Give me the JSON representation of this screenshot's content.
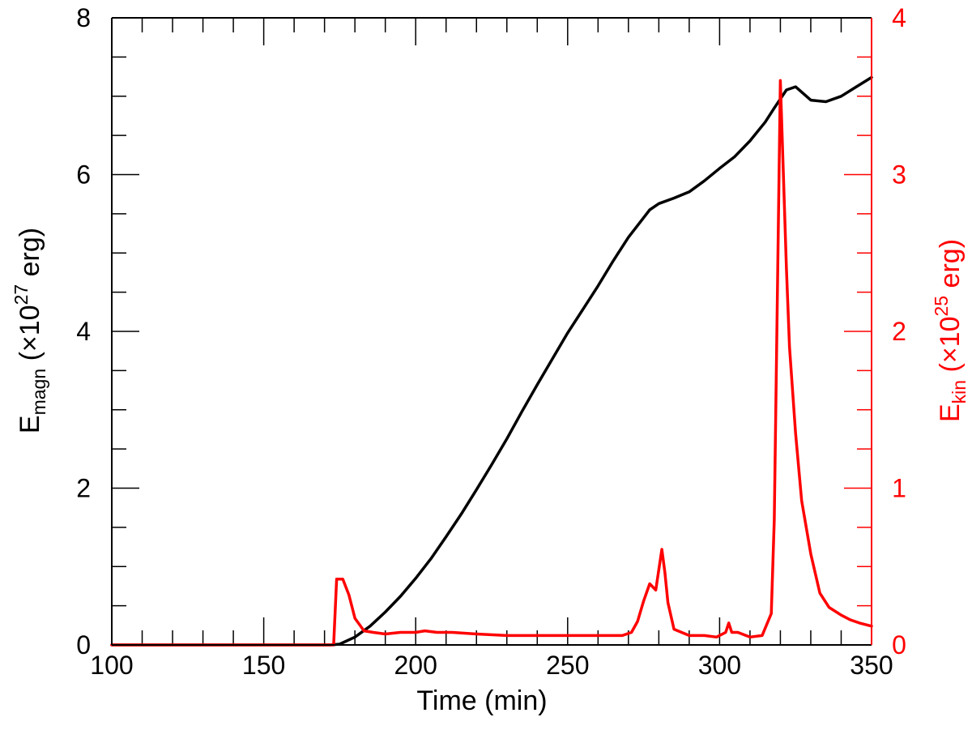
{
  "chart_data": {
    "type": "line",
    "title": "",
    "xlabel": "Time (min)",
    "ylabel_left": {
      "base": "E",
      "subscript": "magn",
      "unit_prefix": " (×10",
      "exponent": "27",
      "unit_suffix": " erg)"
    },
    "ylabel_right": {
      "base": "E",
      "subscript": "kin",
      "unit_prefix": " (×10",
      "exponent": "25",
      "unit_suffix": " erg)"
    },
    "xlim": [
      100,
      350
    ],
    "ylim_left": [
      0,
      8
    ],
    "ylim_right": [
      0,
      4
    ],
    "x_ticks": [
      100,
      150,
      200,
      250,
      300,
      350
    ],
    "y_ticks_left": [
      0,
      2,
      4,
      6,
      8
    ],
    "y_ticks_right": [
      0,
      1,
      2,
      3,
      4
    ],
    "x_minor_step": 10,
    "y_minor_step_left": 0.5,
    "y_minor_step_right": 0.25,
    "grid": false,
    "colors": {
      "left_axis": "#000000",
      "right_axis": "#ff0000"
    },
    "series": [
      {
        "axis": "left",
        "color": "#000000",
        "x": [
          100,
          150,
          172,
          175,
          180,
          185,
          190,
          195,
          200,
          205,
          210,
          215,
          220,
          225,
          230,
          235,
          240,
          245,
          250,
          255,
          260,
          265,
          270,
          275,
          277,
          280,
          285,
          290,
          295,
          300,
          305,
          310,
          315,
          318,
          322,
          325,
          330,
          335,
          340,
          345,
          350
        ],
        "y": [
          0,
          0,
          0,
          0.01,
          0.1,
          0.24,
          0.42,
          0.62,
          0.85,
          1.1,
          1.38,
          1.67,
          1.98,
          2.3,
          2.63,
          2.98,
          3.32,
          3.65,
          3.98,
          4.28,
          4.58,
          4.9,
          5.2,
          5.45,
          5.55,
          5.63,
          5.7,
          5.78,
          5.92,
          6.08,
          6.23,
          6.43,
          6.67,
          6.85,
          7.08,
          7.12,
          6.95,
          6.93,
          7.0,
          7.12,
          7.24
        ]
      },
      {
        "axis": "right",
        "color": "#ff0000",
        "x": [
          100,
          170,
          173,
          174,
          176,
          178,
          180,
          183,
          186,
          190,
          195,
          200,
          203,
          207,
          212,
          220,
          230,
          240,
          250,
          260,
          268,
          271,
          273,
          275,
          277,
          279,
          281,
          282,
          283,
          285,
          290,
          295,
          299,
          302,
          303,
          304,
          306,
          310,
          314,
          317,
          318,
          320,
          322,
          323,
          325,
          327,
          330,
          333,
          336,
          340,
          343,
          346,
          350
        ],
        "y": [
          0,
          0,
          0,
          0.42,
          0.42,
          0.32,
          0.17,
          0.09,
          0.08,
          0.07,
          0.08,
          0.08,
          0.09,
          0.08,
          0.08,
          0.07,
          0.06,
          0.06,
          0.06,
          0.06,
          0.06,
          0.08,
          0.15,
          0.28,
          0.39,
          0.35,
          0.61,
          0.46,
          0.27,
          0.1,
          0.06,
          0.06,
          0.05,
          0.08,
          0.14,
          0.08,
          0.08,
          0.05,
          0.06,
          0.2,
          0.8,
          3.6,
          2.4,
          1.9,
          1.35,
          0.92,
          0.58,
          0.33,
          0.24,
          0.19,
          0.16,
          0.14,
          0.12
        ]
      }
    ]
  }
}
